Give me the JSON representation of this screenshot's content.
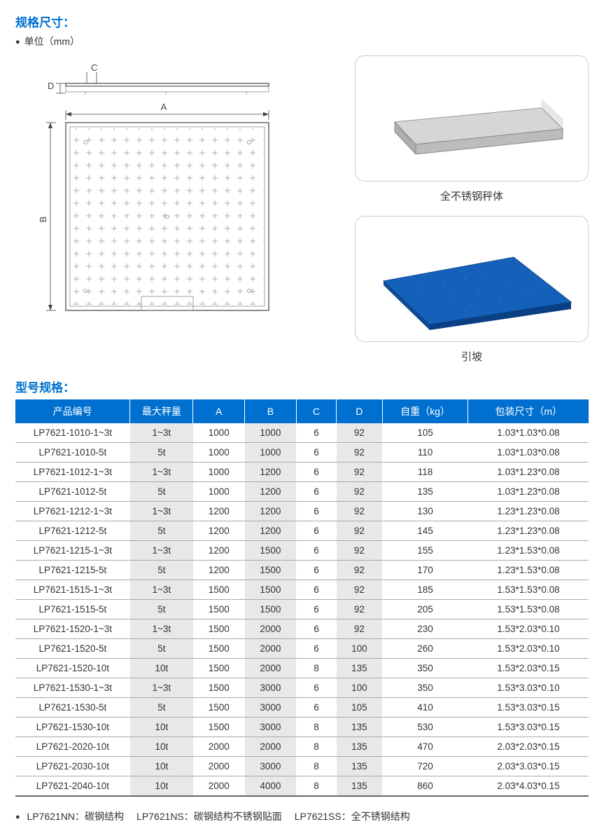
{
  "section1": {
    "title": "规格尺寸：",
    "unit": "单位（mm）"
  },
  "diagram": {
    "labels": {
      "A": "A",
      "B": "B",
      "C": "C",
      "D": "D"
    }
  },
  "images": {
    "img1_caption": "全不锈钢秤体",
    "img2_caption": "引坡",
    "img1_colors": {
      "top": "#d6d6d6",
      "side": "#b8b8b8",
      "edge": "#888"
    },
    "img2_colors": {
      "top": "#1560b8",
      "side": "#0d4a94",
      "edge": "#083a78"
    }
  },
  "section2": {
    "title": "型号规格："
  },
  "table": {
    "columns": [
      "产品编号",
      "最大秤量",
      "A",
      "B",
      "C",
      "D",
      "自重（kg）",
      "包装尺寸（m）"
    ],
    "col_widths": [
      "20%",
      "11%",
      "9%",
      "9%",
      "7%",
      "8%",
      "15%",
      "21%"
    ],
    "shaded_cols": [
      1,
      3,
      5
    ],
    "rows": [
      [
        "LP7621-1010-1~3t",
        "1~3t",
        "1000",
        "1000",
        "6",
        "92",
        "105",
        "1.03*1.03*0.08"
      ],
      [
        "LP7621-1010-5t",
        "5t",
        "1000",
        "1000",
        "6",
        "92",
        "110",
        "1.03*1.03*0.08"
      ],
      [
        "LP7621-1012-1~3t",
        "1~3t",
        "1000",
        "1200",
        "6",
        "92",
        "118",
        "1.03*1.23*0.08"
      ],
      [
        "LP7621-1012-5t",
        "5t",
        "1000",
        "1200",
        "6",
        "92",
        "135",
        "1.03*1.23*0.08"
      ],
      [
        "LP7621-1212-1~3t",
        "1~3t",
        "1200",
        "1200",
        "6",
        "92",
        "130",
        "1.23*1.23*0.08"
      ],
      [
        "LP7621-1212-5t",
        "5t",
        "1200",
        "1200",
        "6",
        "92",
        "145",
        "1.23*1.23*0.08"
      ],
      [
        "LP7621-1215-1~3t",
        "1~3t",
        "1200",
        "1500",
        "6",
        "92",
        "155",
        "1.23*1.53*0.08"
      ],
      [
        "LP7621-1215-5t",
        "5t",
        "1200",
        "1500",
        "6",
        "92",
        "170",
        "1.23*1.53*0.08"
      ],
      [
        "LP7621-1515-1~3t",
        "1~3t",
        "1500",
        "1500",
        "6",
        "92",
        "185",
        "1.53*1.53*0.08"
      ],
      [
        "LP7621-1515-5t",
        "5t",
        "1500",
        "1500",
        "6",
        "92",
        "205",
        "1.53*1.53*0.08"
      ],
      [
        "LP7621-1520-1~3t",
        "1~3t",
        "1500",
        "2000",
        "6",
        "92",
        "230",
        "1.53*2.03*0.10"
      ],
      [
        "LP7621-1520-5t",
        "5t",
        "1500",
        "2000",
        "6",
        "100",
        "260",
        "1.53*2.03*0.10"
      ],
      [
        "LP7621-1520-10t",
        "10t",
        "1500",
        "2000",
        "8",
        "135",
        "350",
        "1.53*2.03*0.15"
      ],
      [
        "LP7621-1530-1~3t",
        "1~3t",
        "1500",
        "3000",
        "6",
        "100",
        "350",
        "1.53*3.03*0.10"
      ],
      [
        "LP7621-1530-5t",
        "5t",
        "1500",
        "3000",
        "6",
        "105",
        "410",
        "1.53*3.03*0.15"
      ],
      [
        "LP7621-1530-10t",
        "10t",
        "1500",
        "3000",
        "8",
        "135",
        "530",
        "1.53*3.03*0.15"
      ],
      [
        "LP7621-2020-10t",
        "10t",
        "2000",
        "2000",
        "8",
        "135",
        "470",
        "2.03*2.03*0.15"
      ],
      [
        "LP7621-2030-10t",
        "10t",
        "2000",
        "3000",
        "8",
        "135",
        "720",
        "2.03*3.03*0.15"
      ],
      [
        "LP7621-2040-10t",
        "10t",
        "2000",
        "4000",
        "8",
        "135",
        "860",
        "2.03*4.03*0.15"
      ]
    ]
  },
  "footnote": {
    "items": [
      {
        "code": "LP7621NN：",
        "desc": "碳钢结构"
      },
      {
        "code": "LP7621NS：",
        "desc": "碳钢结构不锈钢贴面"
      },
      {
        "code": "LP7621SS：",
        "desc": "全不锈钢结构"
      }
    ]
  },
  "styling": {
    "accent_color": "#0070d0",
    "header_bg": "#0070d0",
    "shade_bg": "#e8e8e8",
    "border_color": "#aaa",
    "title_fontsize": 17,
    "body_fontsize": 14,
    "cell_fontsize": 13.5
  }
}
